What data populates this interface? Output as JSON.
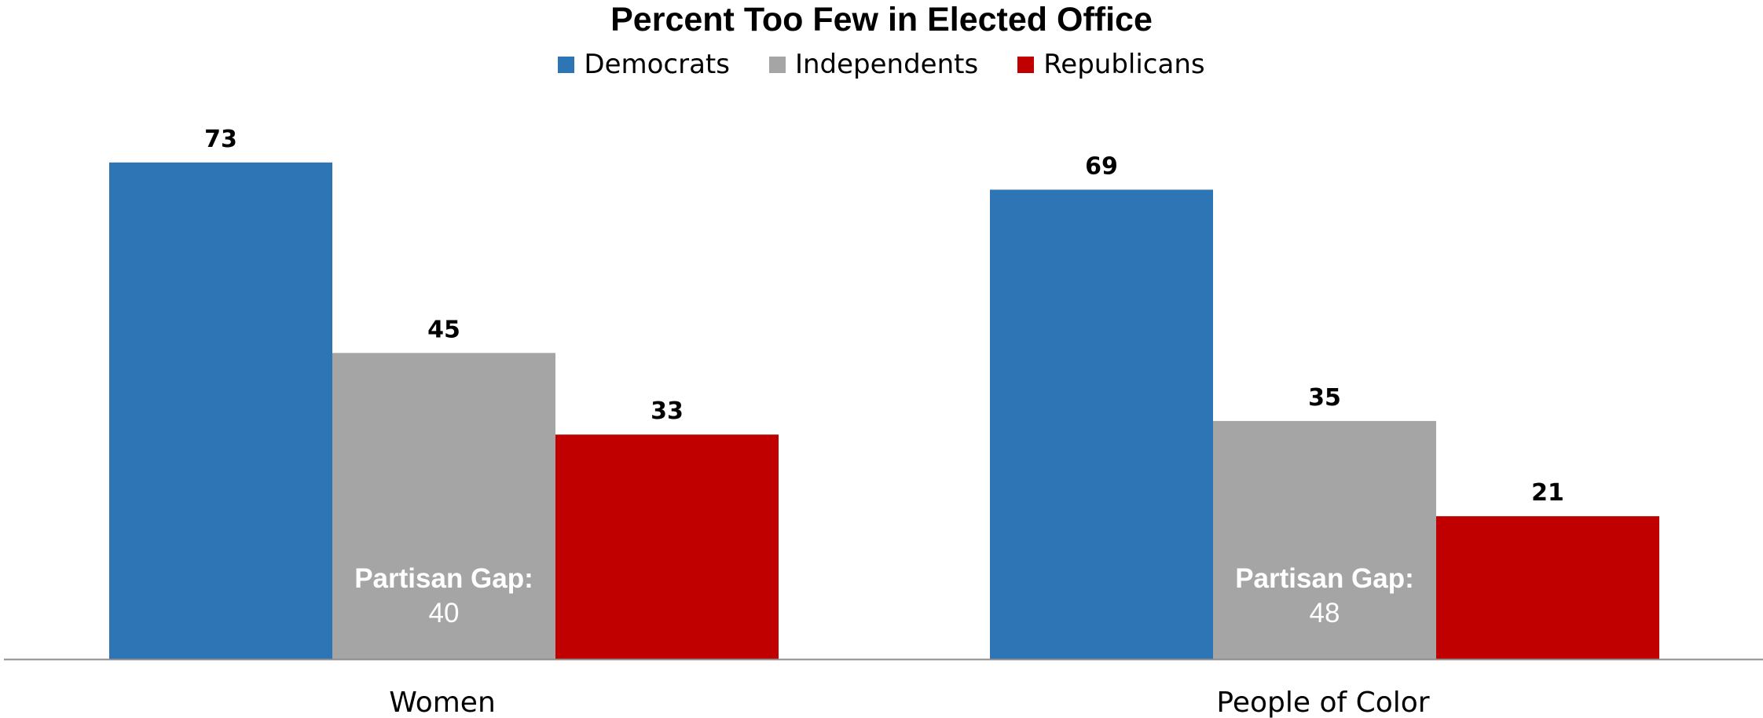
{
  "chart_data": {
    "type": "bar",
    "title": "Percent Too Few in Elected Office",
    "categories": [
      "Women",
      "People of Color"
    ],
    "series": [
      {
        "name": "Democrats",
        "color": "#2E75B6",
        "values": [
          73,
          69
        ]
      },
      {
        "name": "Independents",
        "color": "#A5A5A5",
        "values": [
          45,
          35
        ]
      },
      {
        "name": "Republicans",
        "color": "#C00000",
        "values": [
          33,
          21
        ]
      }
    ],
    "annotations": [
      {
        "category": "Women",
        "label": "Partisan Gap:",
        "value": "40"
      },
      {
        "category": "People of Color",
        "label": "Partisan Gap:",
        "value": "48"
      }
    ],
    "xlabel": "",
    "ylabel": "",
    "ylim": [
      0,
      80
    ],
    "legend_position": "top-center",
    "grid": false
  }
}
